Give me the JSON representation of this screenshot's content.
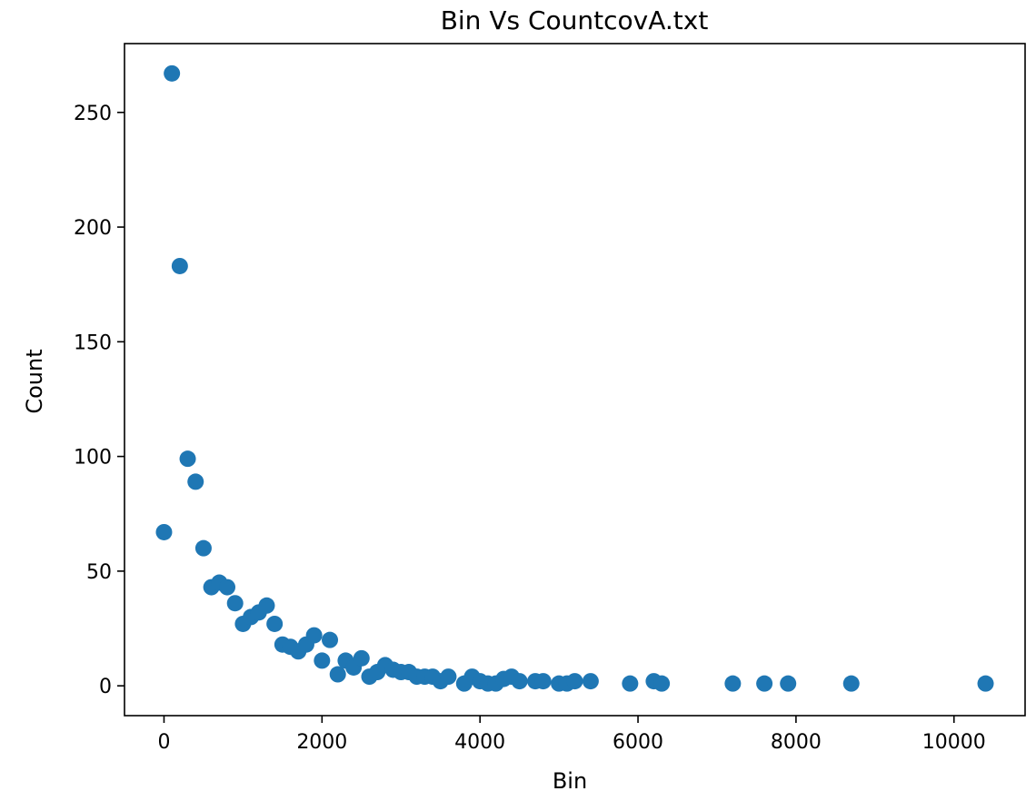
{
  "chart_data": {
    "type": "scatter",
    "title": "Bin Vs CountcovA.txt",
    "xlabel": "Bin",
    "ylabel": "Count",
    "xlim": [
      -500,
      10900
    ],
    "ylim": [
      -13,
      280
    ],
    "xticks": [
      0,
      2000,
      4000,
      6000,
      8000,
      10000
    ],
    "yticks": [
      0,
      50,
      100,
      150,
      200,
      250
    ],
    "grid": false,
    "marker_color": "#1f77b4",
    "points": [
      [
        0,
        67
      ],
      [
        100,
        267
      ],
      [
        200,
        183
      ],
      [
        300,
        99
      ],
      [
        400,
        89
      ],
      [
        500,
        60
      ],
      [
        600,
        43
      ],
      [
        700,
        45
      ],
      [
        800,
        43
      ],
      [
        900,
        36
      ],
      [
        1000,
        27
      ],
      [
        1100,
        30
      ],
      [
        1200,
        32
      ],
      [
        1300,
        35
      ],
      [
        1400,
        27
      ],
      [
        1500,
        18
      ],
      [
        1600,
        17
      ],
      [
        1700,
        15
      ],
      [
        1800,
        18
      ],
      [
        1900,
        22
      ],
      [
        2000,
        11
      ],
      [
        2100,
        20
      ],
      [
        2200,
        5
      ],
      [
        2300,
        11
      ],
      [
        2400,
        8
      ],
      [
        2500,
        12
      ],
      [
        2600,
        4
      ],
      [
        2700,
        6
      ],
      [
        2800,
        9
      ],
      [
        2900,
        7
      ],
      [
        3000,
        6
      ],
      [
        3100,
        6
      ],
      [
        3200,
        4
      ],
      [
        3300,
        4
      ],
      [
        3400,
        4
      ],
      [
        3500,
        2
      ],
      [
        3600,
        4
      ],
      [
        3800,
        1
      ],
      [
        3900,
        4
      ],
      [
        4000,
        2
      ],
      [
        4100,
        1
      ],
      [
        4200,
        1
      ],
      [
        4300,
        3
      ],
      [
        4400,
        4
      ],
      [
        4500,
        2
      ],
      [
        4700,
        2
      ],
      [
        4800,
        2
      ],
      [
        5000,
        1
      ],
      [
        5100,
        1
      ],
      [
        5200,
        2
      ],
      [
        5400,
        2
      ],
      [
        5900,
        1
      ],
      [
        6200,
        2
      ],
      [
        6300,
        1
      ],
      [
        7200,
        1
      ],
      [
        7600,
        1
      ],
      [
        7900,
        1
      ],
      [
        8700,
        1
      ],
      [
        10400,
        1
      ]
    ]
  }
}
